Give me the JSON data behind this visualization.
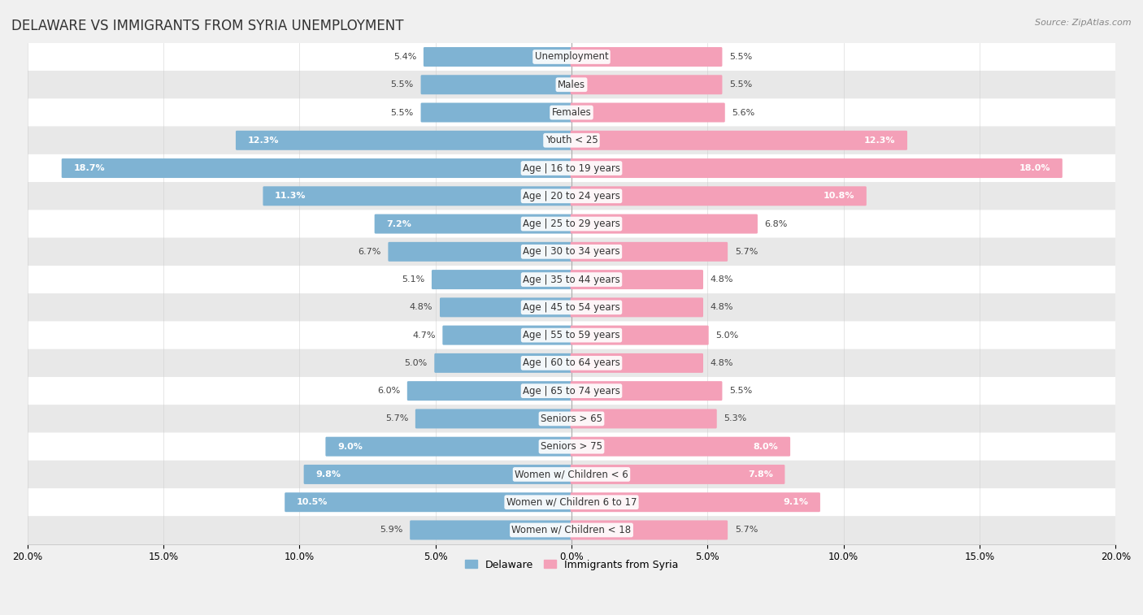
{
  "title": "DELAWARE VS IMMIGRANTS FROM SYRIA UNEMPLOYMENT",
  "source": "Source: ZipAtlas.com",
  "categories": [
    "Unemployment",
    "Males",
    "Females",
    "Youth < 25",
    "Age | 16 to 19 years",
    "Age | 20 to 24 years",
    "Age | 25 to 29 years",
    "Age | 30 to 34 years",
    "Age | 35 to 44 years",
    "Age | 45 to 54 years",
    "Age | 55 to 59 years",
    "Age | 60 to 64 years",
    "Age | 65 to 74 years",
    "Seniors > 65",
    "Seniors > 75",
    "Women w/ Children < 6",
    "Women w/ Children 6 to 17",
    "Women w/ Children < 18"
  ],
  "delaware": [
    5.4,
    5.5,
    5.5,
    12.3,
    18.7,
    11.3,
    7.2,
    6.7,
    5.1,
    4.8,
    4.7,
    5.0,
    6.0,
    5.7,
    9.0,
    9.8,
    10.5,
    5.9
  ],
  "syria": [
    5.5,
    5.5,
    5.6,
    12.3,
    18.0,
    10.8,
    6.8,
    5.7,
    4.8,
    4.8,
    5.0,
    4.8,
    5.5,
    5.3,
    8.0,
    7.8,
    9.1,
    5.7
  ],
  "delaware_color": "#7fb3d3",
  "syria_color": "#f4a0b8",
  "axis_max": 20.0,
  "background_color": "#f0f0f0",
  "row_bg_color": "#ffffff",
  "row_alt_color": "#e8e8e8",
  "title_fontsize": 12,
  "label_fontsize": 8.5,
  "value_fontsize": 8.0,
  "legend_fontsize": 9
}
